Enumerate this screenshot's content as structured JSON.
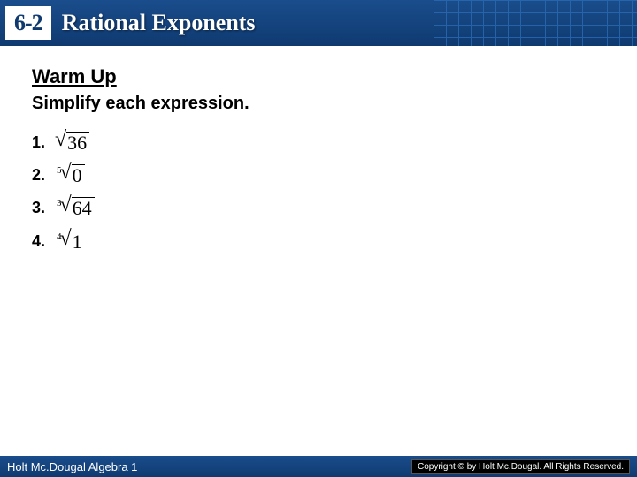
{
  "header": {
    "section_number": "6-2",
    "title": "Rational Exponents",
    "bg_gradient_top": "#1a4d8c",
    "bg_gradient_bottom": "#0f3a70",
    "grid_color": "#2a6bb5"
  },
  "content": {
    "warmup_label": "Warm Up",
    "instruction": "Simplify each expression.",
    "problems": [
      {
        "num": "1.",
        "index": "",
        "radicand": "36"
      },
      {
        "num": "2.",
        "index": "5",
        "radicand": "0"
      },
      {
        "num": "3.",
        "index": "3",
        "radicand": "64"
      },
      {
        "num": "4.",
        "index": "4",
        "radicand": "1"
      }
    ]
  },
  "footer": {
    "left": "Holt Mc.Dougal Algebra 1",
    "right": "Copyright © by Holt Mc.Dougal. All Rights Reserved."
  },
  "colors": {
    "page_bg": "#ffffff",
    "text": "#000000",
    "header_text": "#ffffff",
    "badge_bg": "#ffffff",
    "badge_text": "#0f3a70"
  }
}
